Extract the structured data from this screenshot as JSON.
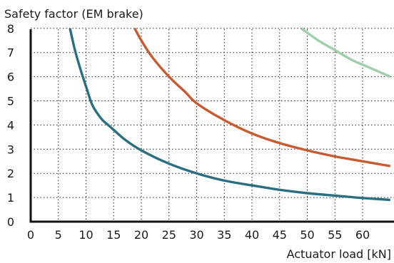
{
  "chart_data": {
    "type": "line",
    "ylabel": "Safety factor (EM brake)",
    "xlabel": "Actuator load [kN]",
    "xlim": [
      0,
      65
    ],
    "ylim": [
      0,
      8
    ],
    "x_ticks": [
      0,
      5,
      10,
      15,
      20,
      25,
      30,
      35,
      40,
      45,
      50,
      55,
      60
    ],
    "y_ticks": [
      0,
      1,
      2,
      3,
      4,
      5,
      6,
      7,
      8
    ],
    "grid": "dotted",
    "legend": "none",
    "series": [
      {
        "color": "#2a6f80",
        "x": [
          7.1,
          8,
          9,
          10,
          11,
          12,
          13,
          14,
          15,
          17,
          20,
          25,
          30,
          35,
          40,
          45,
          50,
          55,
          60,
          65
        ],
        "y": [
          8,
          7.1,
          6.3,
          5.6,
          4.9,
          4.5,
          4.2,
          4.0,
          3.8,
          3.4,
          2.95,
          2.4,
          2.0,
          1.7,
          1.5,
          1.32,
          1.18,
          1.08,
          0.98,
          0.9
        ]
      },
      {
        "color": "#c75a31",
        "x": [
          18.8,
          20,
          22,
          25,
          28,
          30,
          35,
          40,
          45,
          50,
          55,
          60,
          65
        ],
        "y": [
          8,
          7.5,
          6.8,
          6.0,
          5.35,
          4.9,
          4.2,
          3.65,
          3.25,
          2.95,
          2.7,
          2.5,
          2.3
        ]
      },
      {
        "color": "#9fcfaa",
        "x": [
          48.9,
          52,
          55,
          58,
          60,
          62,
          65
        ],
        "y": [
          8,
          7.5,
          7.1,
          6.7,
          6.5,
          6.3,
          6.0
        ]
      }
    ]
  }
}
